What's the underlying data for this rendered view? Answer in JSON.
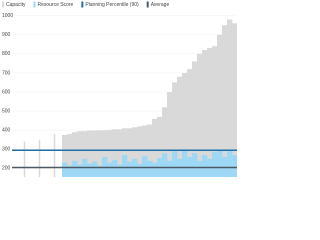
{
  "chart_data": {
    "type": "area",
    "x": [
      0,
      1,
      2,
      3,
      4,
      5,
      6,
      7,
      8,
      9,
      10,
      11,
      12,
      13,
      14,
      15,
      16,
      17,
      18,
      19,
      20,
      21,
      22,
      23,
      24,
      25,
      26,
      27,
      28,
      29,
      30,
      31,
      32,
      33,
      34,
      35,
      36,
      37,
      38,
      39,
      40,
      41,
      42,
      43,
      44
    ],
    "series": [
      {
        "name": "Capacity",
        "color": "#d9d9d9",
        "values": [
          null,
          null,
          340,
          null,
          null,
          350,
          null,
          null,
          380,
          null,
          375,
          380,
          390,
          395,
          395,
          398,
          398,
          400,
          400,
          402,
          405,
          405,
          410,
          410,
          415,
          420,
          425,
          430,
          460,
          470,
          520,
          600,
          650,
          680,
          700,
          720,
          760,
          800,
          820,
          830,
          840,
          900,
          950,
          980,
          960
        ]
      },
      {
        "name": "Resource Score",
        "color": "#9ed8f5",
        "values": [
          null,
          null,
          null,
          null,
          null,
          null,
          null,
          null,
          null,
          null,
          230,
          215,
          240,
          220,
          250,
          225,
          235,
          215,
          260,
          230,
          245,
          220,
          270,
          235,
          250,
          225,
          265,
          240,
          230,
          255,
          280,
          240,
          290,
          250,
          300,
          260,
          280,
          240,
          270,
          250,
          285,
          300,
          260,
          290,
          270
        ]
      }
    ],
    "lines": [
      {
        "name": "Planning Percentile (90)",
        "color": "#1f6fa8",
        "value": 295
      },
      {
        "name": "Average",
        "color": "#4a5a66",
        "value": 205
      }
    ],
    "ylim": [
      155,
      1040
    ],
    "yticks": [
      200,
      300,
      400,
      500,
      600,
      700,
      800,
      900,
      1000
    ]
  }
}
